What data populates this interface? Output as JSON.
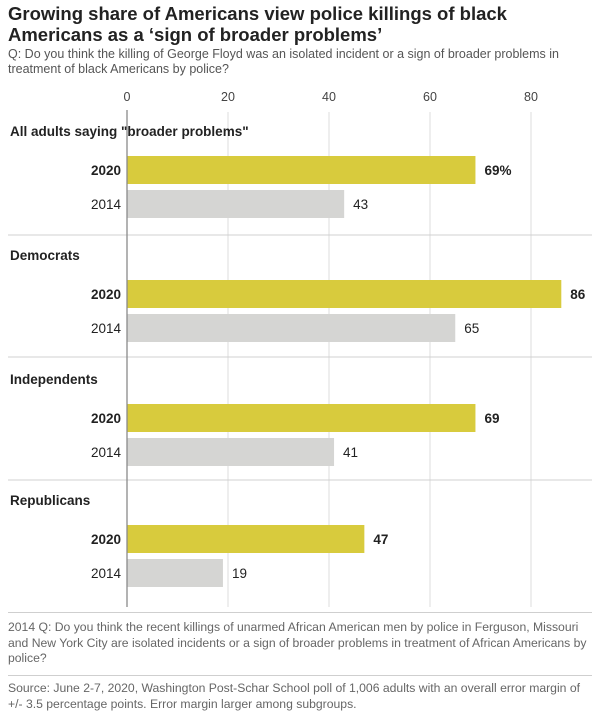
{
  "chart_data": {
    "type": "bar",
    "orientation": "horizontal",
    "title": "Growing share of Americans view police killings of black Americans as a ‘sign of broader problems’",
    "subtitle": "Q: Do you think the killing of George Floyd was an isolated incident or a sign of broader problems in treatment of black Americans by police?",
    "xlim": [
      0,
      86
    ],
    "x_ticks": [
      0,
      20,
      40,
      60,
      80
    ],
    "groups": [
      {
        "label": "All adults saying \"broader problems\"",
        "bars": [
          {
            "year": "2020",
            "value": 69,
            "value_label": "69%"
          },
          {
            "year": "2014",
            "value": 43,
            "value_label": "43"
          }
        ]
      },
      {
        "label": "Democrats",
        "bars": [
          {
            "year": "2020",
            "value": 86,
            "value_label": "86"
          },
          {
            "year": "2014",
            "value": 65,
            "value_label": "65"
          }
        ]
      },
      {
        "label": "Independents",
        "bars": [
          {
            "year": "2020",
            "value": 69,
            "value_label": "69"
          },
          {
            "year": "2014",
            "value": 41,
            "value_label": "41"
          }
        ]
      },
      {
        "label": "Republicans",
        "bars": [
          {
            "year": "2020",
            "value": 47,
            "value_label": "47"
          },
          {
            "year": "2014",
            "value": 19,
            "value_label": "19"
          }
        ]
      }
    ],
    "colors": {
      "2020": "#d8cb3d",
      "2014": "#d5d5d3"
    },
    "grid": true,
    "legend": "none"
  },
  "notes": {
    "q2014": "2014 Q: Do you think the recent killings of unarmed African American men by police in Ferguson, Missouri and New York City are isolated incidents or a sign of broader problems in treatment of African Americans by police?",
    "source": "Source: June 2-7, 2020, Washington Post-Schar School poll of 1,006 adults with an overall error margin of +/- 3.5 percentage points. Error margin larger among subgroups."
  }
}
